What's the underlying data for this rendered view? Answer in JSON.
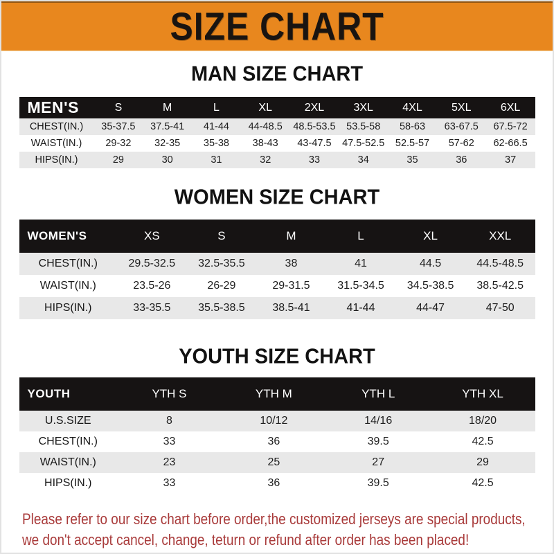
{
  "banner": {
    "title": "SIZE CHART"
  },
  "colors": {
    "banner_bg": "#E8871E",
    "header_bar": "#161313",
    "stripe_row": "#E8E8E8",
    "disclaimer_text": "#A93B3B"
  },
  "tables": [
    {
      "id": "men",
      "title": "MAN SIZE CHART",
      "header_label": "MEN'S",
      "columns": [
        "S",
        "M",
        "L",
        "XL",
        "2XL",
        "3XL",
        "4XL",
        "5XL",
        "6XL"
      ],
      "rows": [
        {
          "label": "CHEST(IN.)",
          "values": [
            "35-37.5",
            "37.5-41",
            "41-44",
            "44-48.5",
            "48.5-53.5",
            "53.5-58",
            "58-63",
            "63-67.5",
            "67.5-72"
          ]
        },
        {
          "label": "WAIST(IN.)",
          "values": [
            "29-32",
            "32-35",
            "35-38",
            "38-43",
            "43-47.5",
            "47.5-52.5",
            "52.5-57",
            "57-62",
            "62-66.5"
          ]
        },
        {
          "label": "HIPS(IN.)",
          "values": [
            "29",
            "30",
            "31",
            "32",
            "33",
            "34",
            "35",
            "36",
            "37"
          ]
        }
      ]
    },
    {
      "id": "women",
      "title": "WOMEN SIZE CHART",
      "header_label": "WOMEN'S",
      "columns": [
        "XS",
        "S",
        "M",
        "L",
        "XL",
        "XXL"
      ],
      "rows": [
        {
          "label": "CHEST(IN.)",
          "values": [
            "29.5-32.5",
            "32.5-35.5",
            "38",
            "41",
            "44.5",
            "44.5-48.5"
          ]
        },
        {
          "label": "WAIST(IN.)",
          "values": [
            "23.5-26",
            "26-29",
            "29-31.5",
            "31.5-34.5",
            "34.5-38.5",
            "38.5-42.5"
          ]
        },
        {
          "label": "HIPS(IN.)",
          "values": [
            "33-35.5",
            "35.5-38.5",
            "38.5-41",
            "41-44",
            "44-47",
            "47-50"
          ]
        }
      ]
    },
    {
      "id": "youth",
      "title": "YOUTH SIZE CHART",
      "header_label": "YOUTH",
      "columns": [
        "YTH S",
        "YTH M",
        "YTH L",
        "YTH XL"
      ],
      "rows": [
        {
          "label": "U.S.SIZE",
          "values": [
            "8",
            "10/12",
            "14/16",
            "18/20"
          ]
        },
        {
          "label": "CHEST(IN.)",
          "values": [
            "33",
            "36",
            "39.5",
            "42.5"
          ]
        },
        {
          "label": "WAIST(IN.)",
          "values": [
            "23",
            "25",
            "27",
            "29"
          ]
        },
        {
          "label": "HIPS(IN.)",
          "values": [
            "33",
            "36",
            "39.5",
            "42.5"
          ]
        }
      ]
    }
  ],
  "disclaimer": {
    "line1": "Please refer to our size chart before order,the customized jerseys are special products,",
    "line2": "we don't accept cancel, change, teturn or refund after order has been placed!"
  }
}
